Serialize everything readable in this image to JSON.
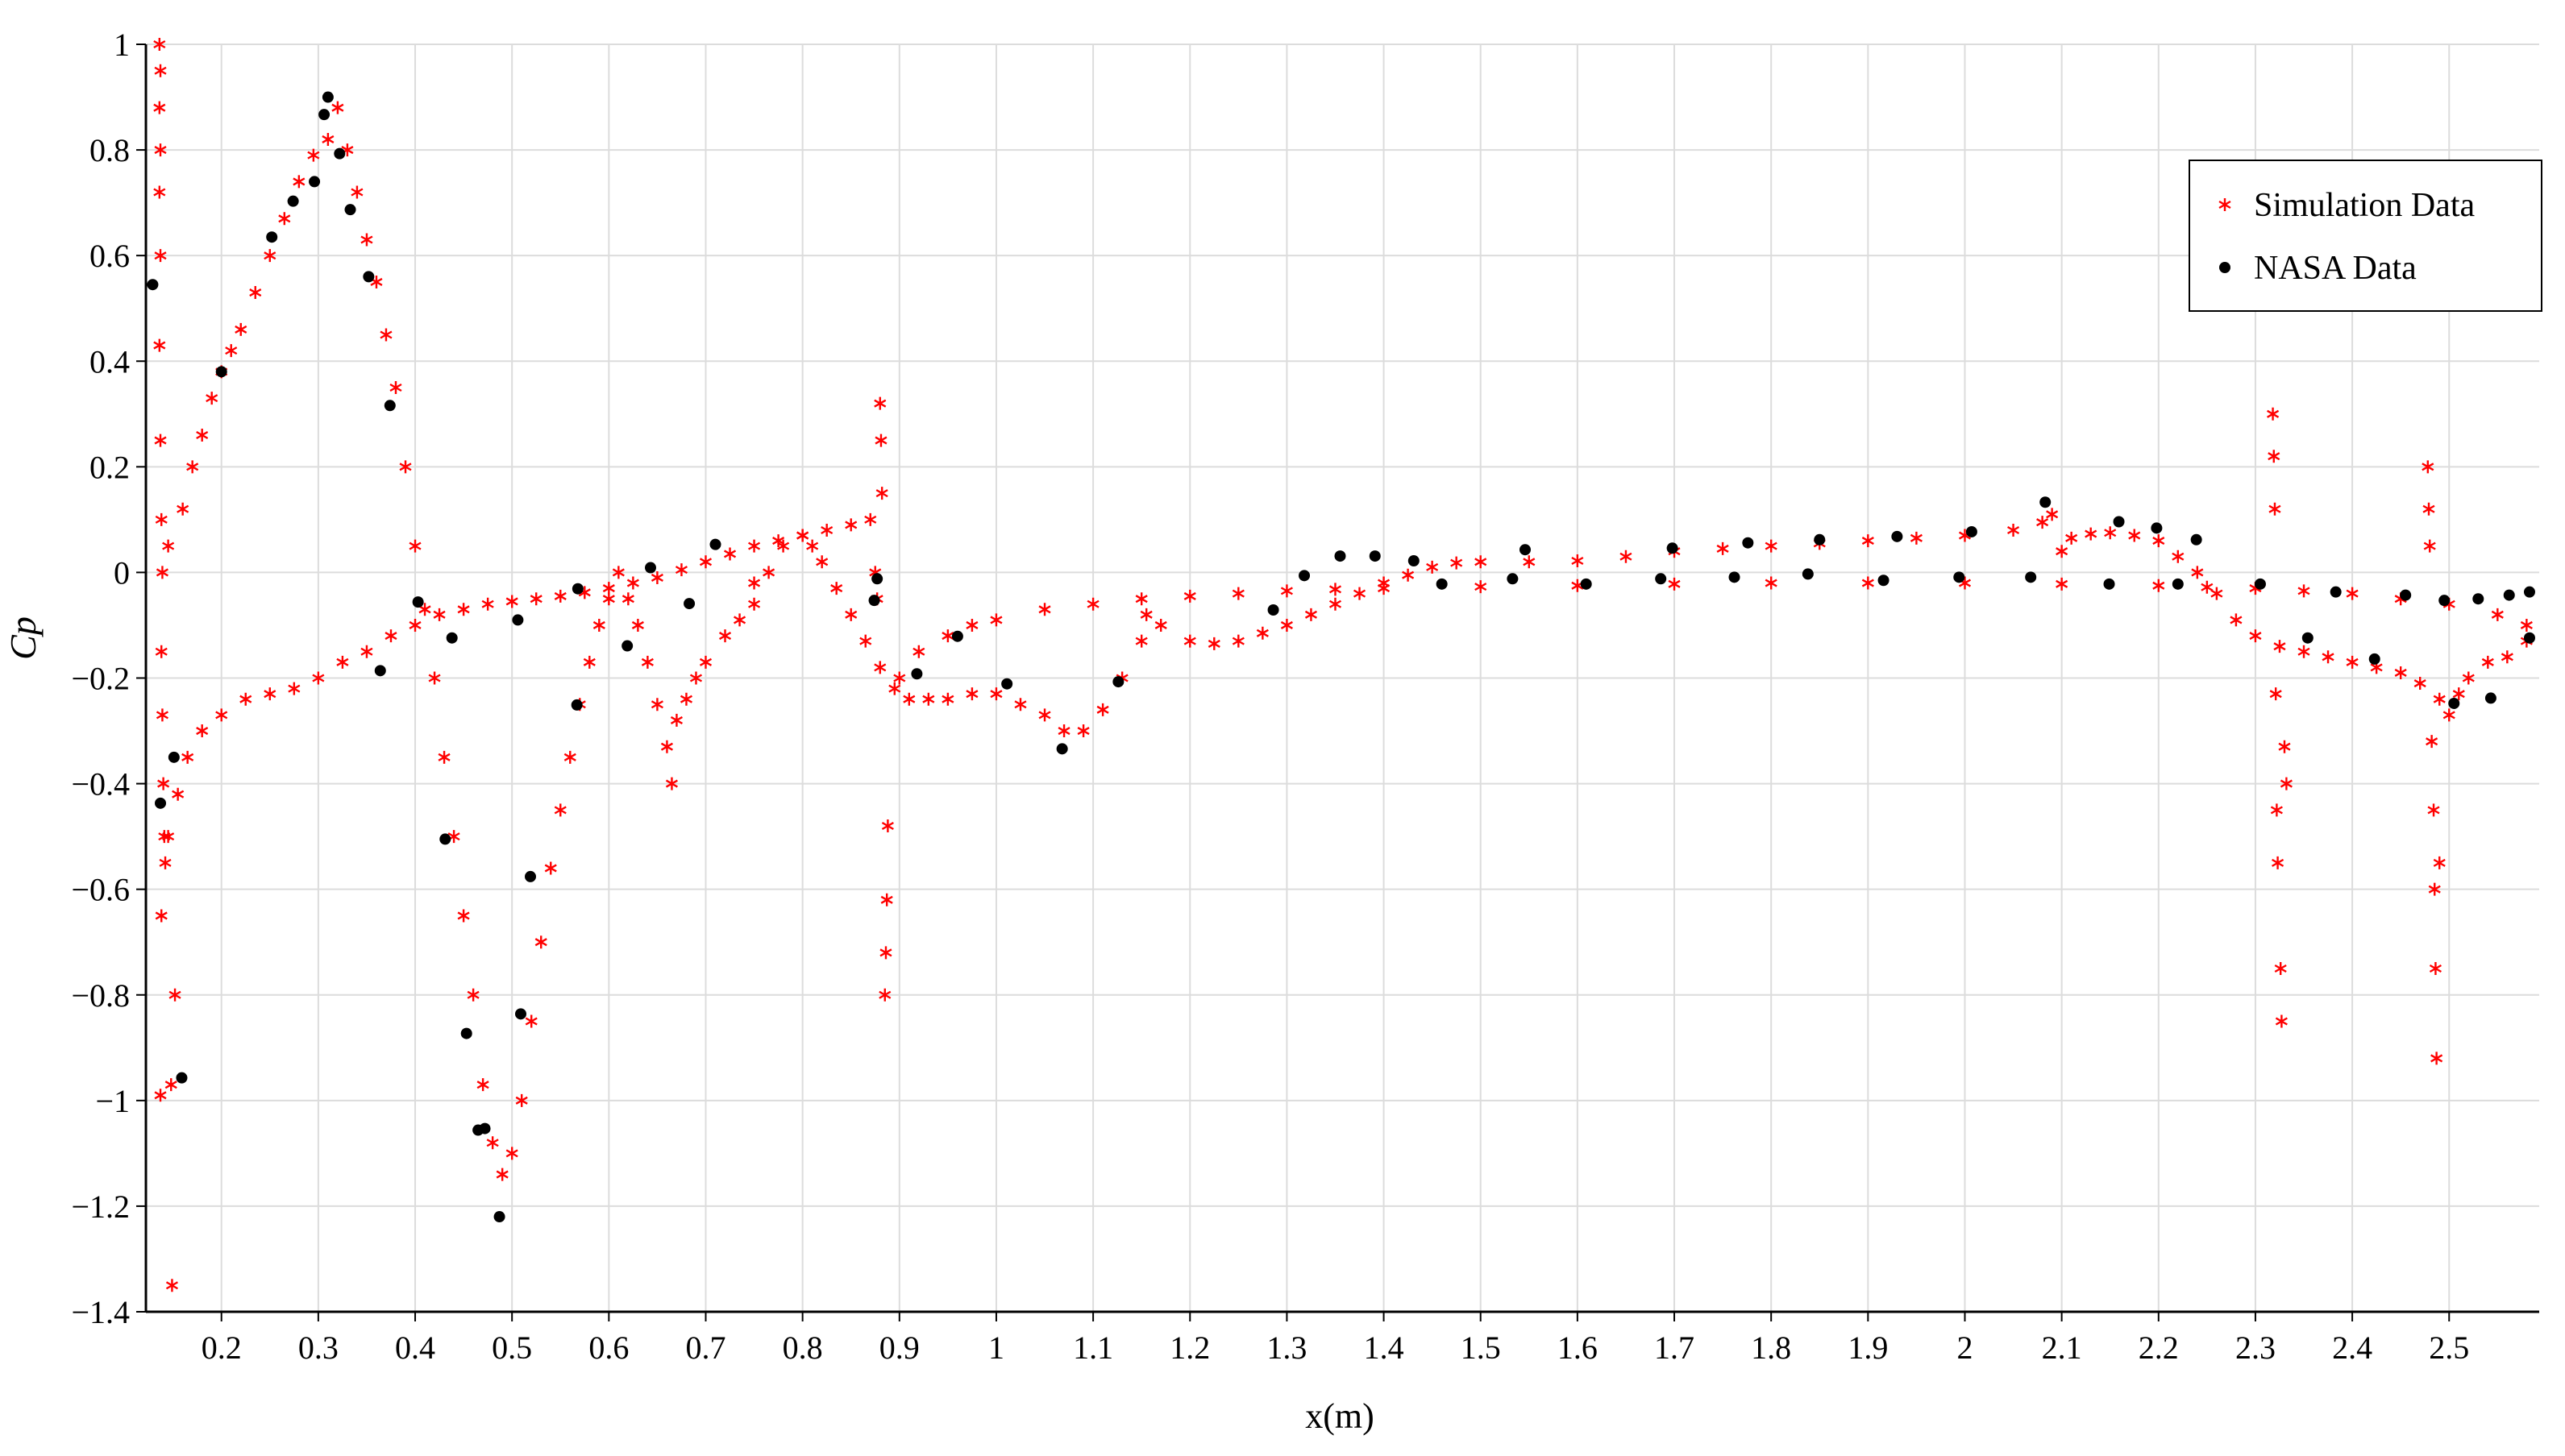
{
  "chart_data": {
    "type": "scatter",
    "x_label": "x(m)",
    "y_label": "Cp",
    "xlim": [
      0.122,
      2.593
    ],
    "ylim": [
      -1.4,
      1
    ],
    "xticks": [
      0.2,
      0.3,
      0.4,
      0.5,
      0.6,
      0.7,
      0.8,
      0.9,
      1,
      1.1,
      1.2,
      1.3,
      1.4,
      1.5,
      1.6,
      1.7,
      1.8,
      1.9,
      2,
      2.1,
      2.2,
      2.3,
      2.4,
      2.5
    ],
    "yticks": [
      {
        "value": -1.4,
        "label": "−1.4"
      },
      {
        "value": -1.2,
        "label": "−1.2"
      },
      {
        "value": -1,
        "label": "−1"
      },
      {
        "value": -0.8,
        "label": "−0.8"
      },
      {
        "value": -0.6,
        "label": "−0.6"
      },
      {
        "value": -0.4,
        "label": "−0.4"
      },
      {
        "value": -0.2,
        "label": "−0.2"
      },
      0,
      0.2,
      0.4,
      0.6,
      0.8,
      1
    ],
    "grid": true,
    "legend": "upper right",
    "series": [
      {
        "name": "Simulation Data",
        "color": "#ff0000",
        "marker": "asterisk",
        "x": [
          0.136,
          0.137,
          0.136,
          0.137,
          0.136,
          0.137,
          0.136,
          0.137,
          0.138,
          0.139,
          0.138,
          0.139,
          0.14,
          0.141,
          0.142,
          0.138,
          0.137,
          0.148,
          0.152,
          0.149,
          0.145,
          0.155,
          0.165,
          0.18,
          0.2,
          0.225,
          0.25,
          0.275,
          0.3,
          0.325,
          0.35,
          0.375,
          0.4,
          0.425,
          0.45,
          0.475,
          0.5,
          0.525,
          0.55,
          0.575,
          0.6,
          0.625,
          0.65,
          0.675,
          0.7,
          0.725,
          0.75,
          0.75,
          0.775,
          0.8,
          0.825,
          0.85,
          0.87,
          0.875,
          0.877,
          0.9,
          0.92,
          0.95,
          0.975,
          1.0,
          1.05,
          1.1,
          1.15,
          1.2,
          1.25,
          1.3,
          1.35,
          1.4,
          1.5,
          1.6,
          1.7,
          1.8,
          1.9,
          2.0,
          2.1,
          2.2,
          2.25,
          2.3,
          2.35,
          2.4,
          2.45,
          2.5,
          2.55,
          2.58,
          0.145,
          0.16,
          0.17,
          0.18,
          0.19,
          0.2,
          0.21,
          0.22,
          0.235,
          0.25,
          0.265,
          0.28,
          0.295,
          0.31,
          0.32,
          0.33,
          0.34,
          0.35,
          0.36,
          0.37,
          0.38,
          0.39,
          0.4,
          0.41,
          0.42,
          0.43,
          0.44,
          0.45,
          0.46,
          0.47,
          0.48,
          0.49,
          0.5,
          0.51,
          0.52,
          0.53,
          0.54,
          0.55,
          0.56,
          0.57,
          0.58,
          0.59,
          0.6,
          0.61,
          0.62,
          0.63,
          0.64,
          0.65,
          0.66,
          0.665,
          0.67,
          0.68,
          0.69,
          0.7,
          0.72,
          0.735,
          0.75,
          0.765,
          0.78,
          0.8,
          0.81,
          0.82,
          0.835,
          0.85,
          0.865,
          0.88,
          0.895,
          0.91,
          0.93,
          0.95,
          0.975,
          1.0,
          1.025,
          1.05,
          1.07,
          1.09,
          1.11,
          1.13,
          1.15,
          1.155,
          1.17,
          1.2,
          1.225,
          1.25,
          1.275,
          1.3,
          1.325,
          1.35,
          1.375,
          1.4,
          1.425,
          1.45,
          1.475,
          1.5,
          1.55,
          1.6,
          1.65,
          1.7,
          1.75,
          1.8,
          1.85,
          1.9,
          1.95,
          2.0,
          2.05,
          2.08,
          2.09,
          2.1,
          2.11,
          2.13,
          2.15,
          2.175,
          2.2,
          2.22,
          2.24,
          2.26,
          2.28,
          2.3,
          2.325,
          2.35,
          2.375,
          2.4,
          2.425,
          2.45,
          2.47,
          2.49,
          2.5,
          2.51,
          2.52,
          2.54,
          2.56,
          2.58,
          0.88,
          0.881,
          0.882,
          0.888,
          0.887,
          0.886,
          0.885,
          2.318,
          2.319,
          2.32,
          2.321,
          2.322,
          2.323,
          2.326,
          2.327,
          2.33,
          2.332,
          2.478,
          2.479,
          2.48,
          2.482,
          2.484,
          2.485,
          2.486,
          2.487,
          2.49
        ],
        "values": [
          1.0,
          0.95,
          0.88,
          0.8,
          0.72,
          0.6,
          0.43,
          0.25,
          0.1,
          0.0,
          -0.15,
          -0.27,
          -0.4,
          -0.5,
          -0.55,
          -0.65,
          -0.99,
          -0.97,
          -0.8,
          -1.35,
          -0.5,
          -0.42,
          -0.35,
          -0.3,
          -0.27,
          -0.24,
          -0.23,
          -0.22,
          -0.2,
          -0.17,
          -0.15,
          -0.12,
          -0.1,
          -0.08,
          -0.07,
          -0.06,
          -0.055,
          -0.05,
          -0.045,
          -0.038,
          -0.03,
          -0.02,
          -0.01,
          0.005,
          0.02,
          0.035,
          0.05,
          -0.02,
          0.06,
          0.07,
          0.08,
          0.09,
          0.1,
          0.0,
          -0.05,
          -0.2,
          -0.15,
          -0.12,
          -0.1,
          -0.09,
          -0.07,
          -0.06,
          -0.05,
          -0.045,
          -0.04,
          -0.035,
          -0.032,
          -0.03,
          -0.027,
          -0.025,
          -0.022,
          -0.02,
          -0.02,
          -0.02,
          -0.022,
          -0.025,
          -0.028,
          -0.03,
          -0.035,
          -0.04,
          -0.05,
          -0.06,
          -0.08,
          -0.1,
          0.05,
          0.12,
          0.2,
          0.26,
          0.33,
          0.38,
          0.42,
          0.46,
          0.53,
          0.6,
          0.67,
          0.74,
          0.79,
          0.82,
          0.88,
          0.8,
          0.72,
          0.63,
          0.55,
          0.45,
          0.35,
          0.2,
          0.05,
          -0.07,
          -0.2,
          -0.35,
          -0.5,
          -0.65,
          -0.8,
          -0.97,
          -1.08,
          -1.14,
          -1.1,
          -1.0,
          -0.85,
          -0.7,
          -0.56,
          -0.45,
          -0.35,
          -0.25,
          -0.17,
          -0.1,
          -0.05,
          0.0,
          -0.05,
          -0.1,
          -0.17,
          -0.25,
          -0.33,
          -0.4,
          -0.28,
          -0.24,
          -0.2,
          -0.17,
          -0.12,
          -0.09,
          -0.06,
          0.0,
          0.05,
          0.07,
          0.05,
          0.02,
          -0.03,
          -0.08,
          -0.13,
          -0.18,
          -0.22,
          -0.24,
          -0.24,
          -0.24,
          -0.23,
          -0.23,
          -0.25,
          -0.27,
          -0.3,
          -0.3,
          -0.26,
          -0.2,
          -0.13,
          -0.08,
          -0.1,
          -0.13,
          -0.135,
          -0.13,
          -0.115,
          -0.1,
          -0.08,
          -0.06,
          -0.04,
          -0.02,
          -0.005,
          0.01,
          0.018,
          0.02,
          0.02,
          0.022,
          0.03,
          0.04,
          0.045,
          0.05,
          0.055,
          0.06,
          0.065,
          0.07,
          0.08,
          0.095,
          0.11,
          0.04,
          0.065,
          0.073,
          0.075,
          0.07,
          0.06,
          0.03,
          0.0,
          -0.04,
          -0.09,
          -0.12,
          -0.14,
          -0.15,
          -0.16,
          -0.17,
          -0.18,
          -0.19,
          -0.21,
          -0.24,
          -0.27,
          -0.23,
          -0.2,
          -0.17,
          -0.16,
          -0.13,
          0.32,
          0.25,
          0.15,
          -0.48,
          -0.62,
          -0.72,
          -0.8,
          0.3,
          0.22,
          0.12,
          -0.23,
          -0.45,
          -0.55,
          -0.75,
          -0.85,
          -0.33,
          -0.4,
          0.2,
          0.12,
          0.05,
          -0.32,
          -0.45,
          -0.6,
          -0.75,
          -0.92,
          -0.55
        ]
      },
      {
        "name": "NASA Data",
        "color": "#000000",
        "marker": "dot",
        "x": [
          0.129,
          0.137,
          0.151,
          0.159,
          0.2,
          0.252,
          0.274,
          0.296,
          0.306,
          0.31,
          0.322,
          0.333,
          0.352,
          0.374,
          0.364,
          0.403,
          0.438,
          0.431,
          0.453,
          0.465,
          0.472,
          0.487,
          0.506,
          0.509,
          0.519,
          0.567,
          0.568,
          0.619,
          0.643,
          0.683,
          0.71,
          0.877,
          0.874,
          0.918,
          0.96,
          1.011,
          1.068,
          1.126,
          1.286,
          1.318,
          1.355,
          1.391,
          1.431,
          1.46,
          1.533,
          1.546,
          1.609,
          1.686,
          1.698,
          1.762,
          1.776,
          1.838,
          1.85,
          1.916,
          1.93,
          1.994,
          2.007,
          2.068,
          2.083,
          2.149,
          2.159,
          2.198,
          2.22,
          2.239,
          2.305,
          2.354,
          2.383,
          2.423,
          2.455,
          2.495,
          2.505,
          2.53,
          2.543,
          2.562,
          2.583,
          2.583
        ],
        "values": [
          0.545,
          -0.437,
          -0.35,
          -0.957,
          0.38,
          0.635,
          0.703,
          0.74,
          0.867,
          0.9,
          0.793,
          0.687,
          0.56,
          0.316,
          -0.186,
          -0.056,
          -0.124,
          -0.505,
          -0.873,
          -1.056,
          -1.053,
          -1.22,
          -0.09,
          -0.836,
          -0.576,
          -0.251,
          -0.031,
          -0.139,
          0.009,
          -0.059,
          0.053,
          -0.012,
          -0.053,
          -0.192,
          -0.121,
          -0.211,
          -0.334,
          -0.207,
          -0.071,
          -0.006,
          0.031,
          0.031,
          0.022,
          -0.022,
          -0.012,
          0.043,
          -0.022,
          -0.012,
          0.046,
          -0.009,
          0.056,
          -0.003,
          0.062,
          -0.015,
          0.068,
          -0.009,
          0.077,
          -0.009,
          0.133,
          -0.022,
          0.096,
          0.084,
          -0.022,
          0.062,
          -0.022,
          -0.124,
          -0.037,
          -0.164,
          -0.043,
          -0.053,
          -0.248,
          -0.05,
          -0.238,
          -0.043,
          -0.037,
          -0.124
        ]
      }
    ]
  }
}
